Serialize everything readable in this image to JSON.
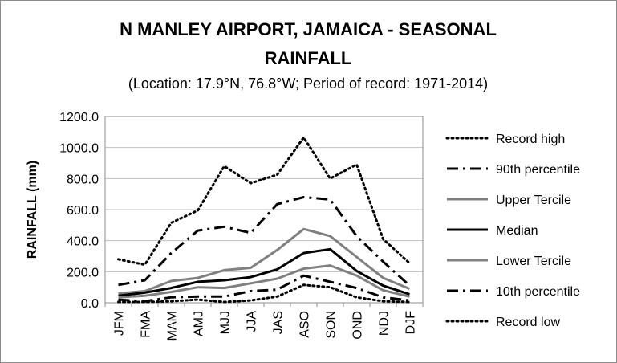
{
  "chart_data": {
    "type": "line",
    "title_line1": "N MANLEY AIRPORT, JAMAICA - SEASONAL",
    "title_line2": "RAINFALL",
    "subtitle": "(Location: 17.9°N, 76.8°W; Period of record: 1971-2014)",
    "xlabel": "",
    "ylabel": "RAINFALL (mm)",
    "ylim": [
      0,
      1200
    ],
    "y_ticks": [
      "0.0",
      "200.0",
      "400.0",
      "600.0",
      "800.0",
      "1000.0",
      "1200.0"
    ],
    "grid": "horizontal",
    "legend_position": "right",
    "categories": [
      "JFM",
      "FMA",
      "MAM",
      "AMJ",
      "MJJ",
      "JJA",
      "JAS",
      "ASO",
      "SON",
      "OND",
      "NDJ",
      "DJF"
    ],
    "series": [
      {
        "name": "Record high",
        "color": "#000000",
        "style": "dotted",
        "values": [
          280,
          245,
          515,
          595,
          880,
          770,
          825,
          1065,
          800,
          890,
          410,
          255
        ]
      },
      {
        "name": "90th percentile",
        "color": "#000000",
        "style": "dashdot",
        "values": [
          115,
          145,
          320,
          465,
          490,
          450,
          635,
          680,
          665,
          430,
          265,
          110
        ]
      },
      {
        "name": "Upper Tercile",
        "color": "#808080",
        "style": "solid",
        "values": [
          60,
          75,
          140,
          160,
          210,
          225,
          340,
          475,
          430,
          295,
          160,
          90
        ]
      },
      {
        "name": "Median",
        "color": "#000000",
        "style": "solid",
        "values": [
          45,
          65,
          95,
          135,
          145,
          165,
          215,
          320,
          345,
          205,
          110,
          55
        ]
      },
      {
        "name": "Lower Tercile",
        "color": "#808080",
        "style": "solid",
        "values": [
          35,
          45,
          70,
          100,
          95,
          125,
          155,
          220,
          240,
          175,
          80,
          40
        ]
      },
      {
        "name": "10th percentile",
        "color": "#000000",
        "style": "dashdot",
        "values": [
          20,
          10,
          35,
          40,
          40,
          75,
          85,
          175,
          135,
          95,
          35,
          15
        ]
      },
      {
        "name": "Record low",
        "color": "#000000",
        "style": "dotted",
        "values": [
          5,
          5,
          10,
          20,
          5,
          15,
          40,
          115,
          100,
          35,
          10,
          5
        ]
      }
    ]
  }
}
